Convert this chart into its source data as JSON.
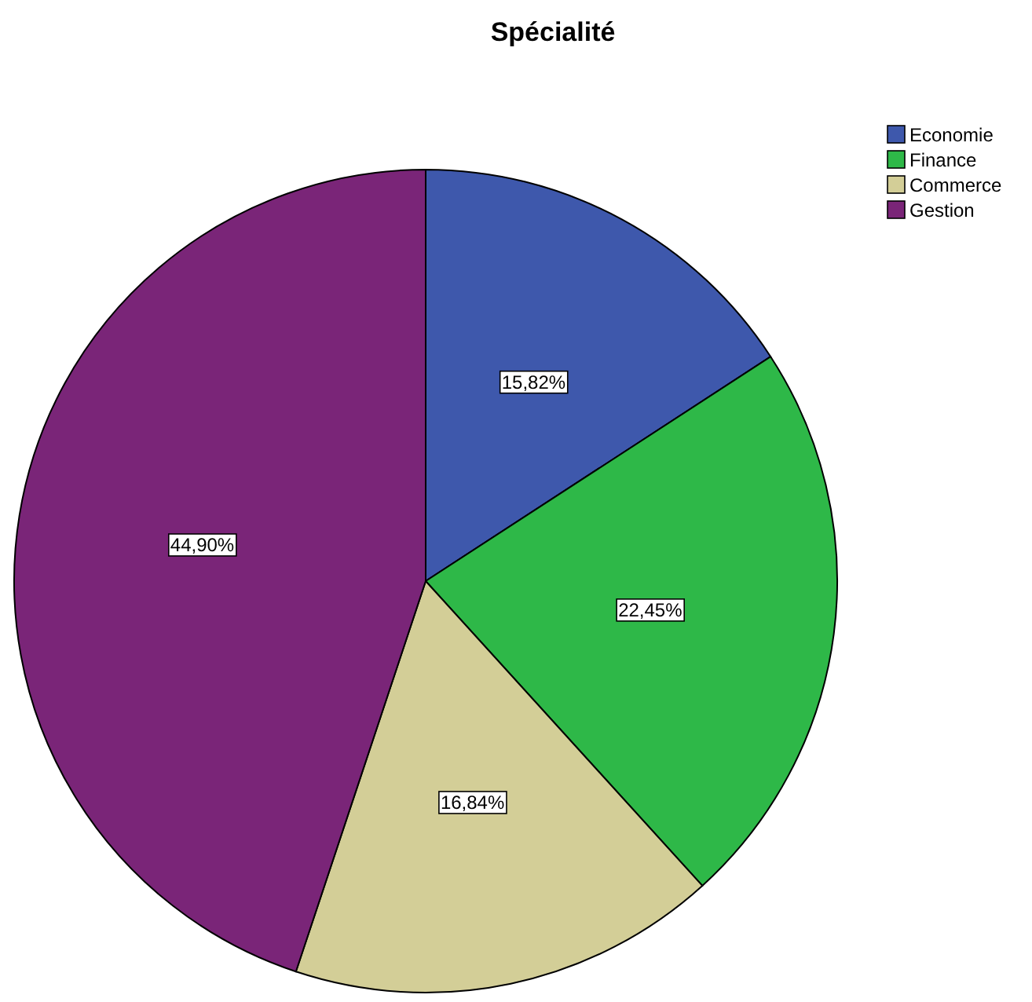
{
  "chart_data": {
    "type": "pie",
    "title": "Spécialité",
    "categories": [
      "Economie",
      "Finance",
      "Commerce",
      "Gestion"
    ],
    "values": [
      15.82,
      22.45,
      16.84,
      44.9
    ],
    "colors": [
      "#3e58ac",
      "#2eb848",
      "#d3ce97",
      "#7a2578"
    ],
    "value_labels": [
      "15,82%",
      "22,45%",
      "16,84%",
      "44,90%"
    ],
    "legend": "top right"
  }
}
